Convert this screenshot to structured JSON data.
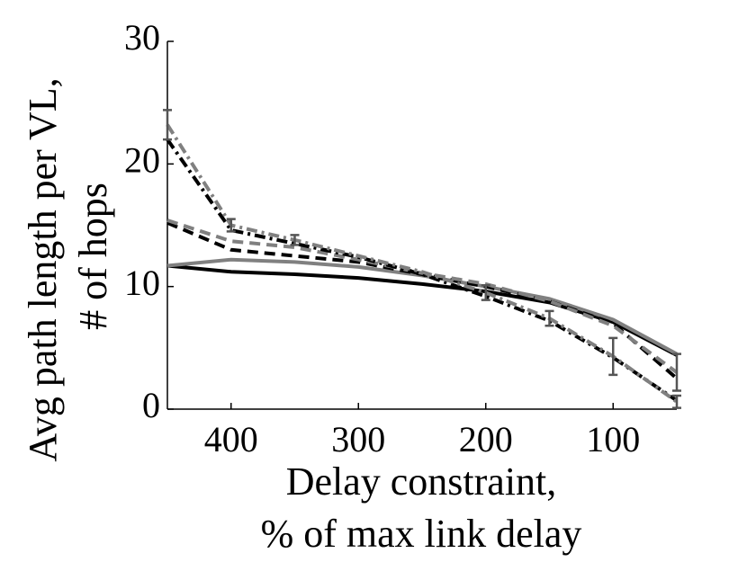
{
  "chart_data": {
    "type": "line",
    "x_label": [
      "Delay constraint,",
      "% of max link delay"
    ],
    "y_label": [
      "Avg path length per VL,",
      "# of hops"
    ],
    "x": [
      450,
      400,
      350,
      300,
      250,
      200,
      150,
      100,
      50
    ],
    "xlim": [
      450,
      50
    ],
    "xticks": [
      400,
      300,
      200,
      100
    ],
    "ylim": [
      0,
      30
    ],
    "yticks": [
      0,
      10,
      20,
      30
    ],
    "series": [
      {
        "color": "#000000",
        "dash": "solid",
        "values": [
          11.7,
          11.2,
          11.0,
          10.7,
          10.2,
          9.6,
          8.7,
          7.1,
          4.4
        ]
      },
      {
        "color": "#808080",
        "dash": "solid",
        "values": [
          11.7,
          12.2,
          12.0,
          11.6,
          10.9,
          10.0,
          9.0,
          7.3,
          4.5
        ]
      },
      {
        "color": "#000000",
        "dash": "dashed",
        "values": [
          15.2,
          13.0,
          12.5,
          12.0,
          11.0,
          10.0,
          8.8,
          7.0,
          2.5
        ]
      },
      {
        "color": "#808080",
        "dash": "dashed",
        "values": [
          15.4,
          13.7,
          13.2,
          12.2,
          11.1,
          10.2,
          8.8,
          6.8,
          3.0
        ],
        "errors": [
          null,
          null,
          null,
          null,
          null,
          null,
          null,
          null,
          1.5
        ]
      },
      {
        "color": "#000000",
        "dash": "dashdot",
        "values": [
          22.0,
          14.6,
          13.5,
          12.4,
          11.0,
          9.2,
          7.2,
          4.2,
          0.7
        ]
      },
      {
        "color": "#808080",
        "dash": "dashdot",
        "values": [
          23.2,
          15.0,
          13.8,
          12.5,
          11.2,
          9.5,
          7.4,
          4.3,
          0.6
        ],
        "errors": [
          1.2,
          0.5,
          0.4,
          null,
          null,
          0.6,
          0.6,
          1.5,
          0.5
        ]
      }
    ]
  }
}
